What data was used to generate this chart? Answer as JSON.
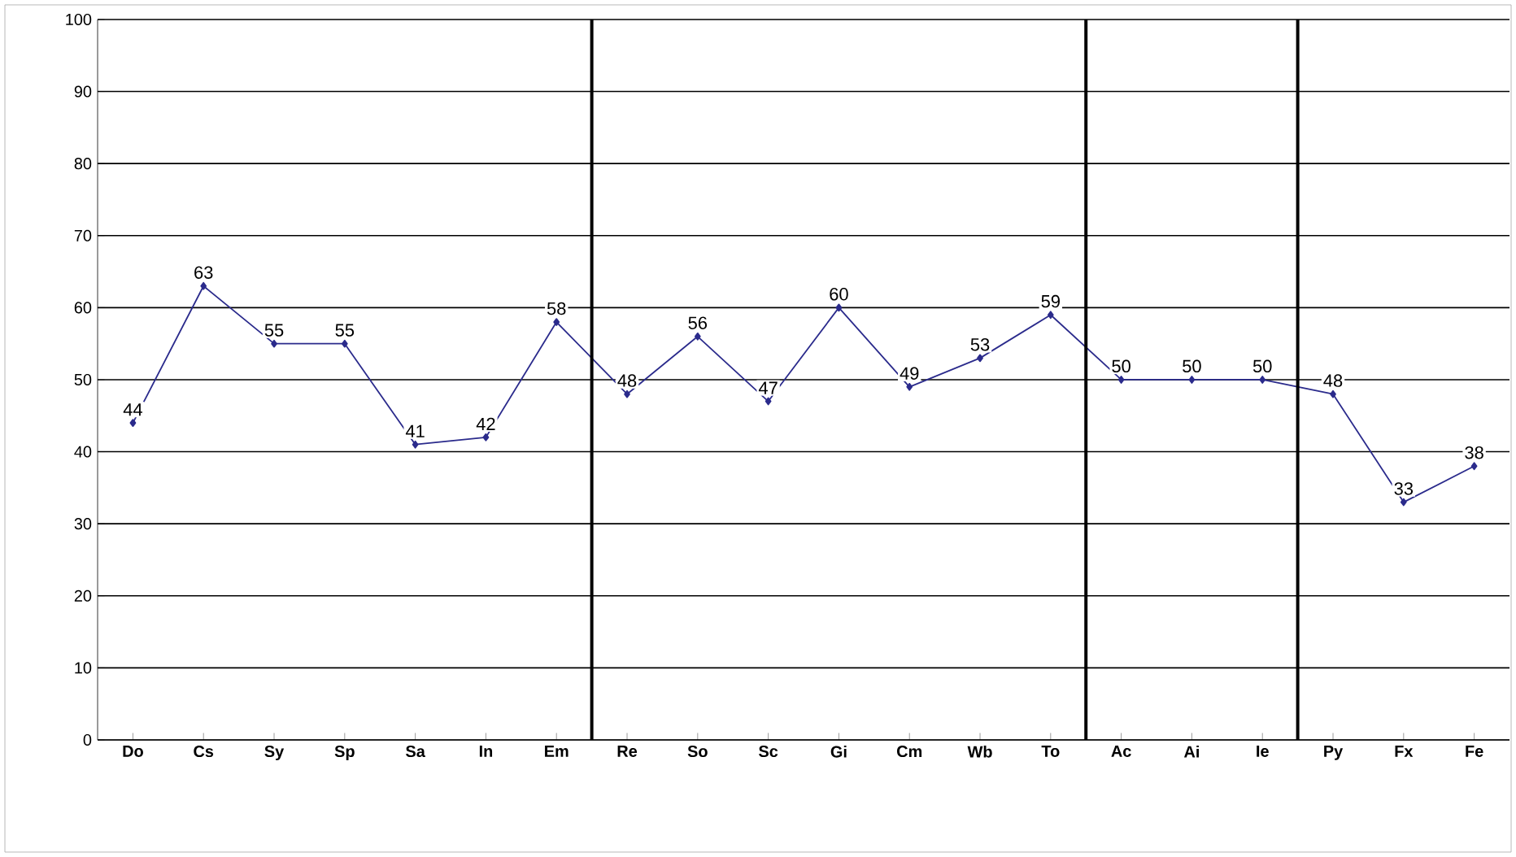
{
  "chart_data": {
    "type": "line",
    "categories": [
      "Do",
      "Cs",
      "Sy",
      "Sp",
      "Sa",
      "In",
      "Em",
      "Re",
      "So",
      "Sc",
      "Gi",
      "Cm",
      "Wb",
      "To",
      "Ac",
      "Ai",
      "Ie",
      "Py",
      "Fx",
      "Fe"
    ],
    "series": [
      {
        "color": "#2b2b8c",
        "values": [
          44,
          63,
          55,
          55,
          41,
          42,
          58,
          48,
          56,
          47,
          60,
          49,
          53,
          59,
          50,
          50,
          50,
          48,
          33,
          38
        ]
      }
    ],
    "ylim": [
      0,
      100
    ],
    "yticks": [
      0,
      10,
      20,
      30,
      40,
      50,
      60,
      70,
      80,
      90,
      100
    ],
    "grid": "y",
    "data_labels": true,
    "marker": "diamond"
  }
}
